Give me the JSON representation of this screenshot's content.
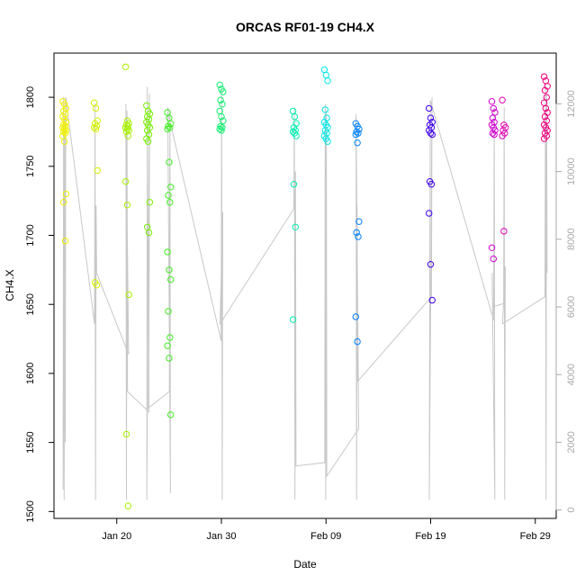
{
  "chart_data": {
    "type": "scatter",
    "title": "ORCAS RF01-19 CH4.X",
    "xlabel": "Date",
    "ylabel": "CH4.X",
    "xlim": [
      "2016-01-14",
      "2016-03-02"
    ],
    "ylim": [
      1495,
      1832
    ],
    "y2lim": [
      -250,
      13500
    ],
    "x_ticks": [
      {
        "date": "2016-01-20",
        "label": "Jan 20"
      },
      {
        "date": "2016-01-30",
        "label": "Jan 30"
      },
      {
        "date": "2016-02-09",
        "label": "Feb 09"
      },
      {
        "date": "2016-02-19",
        "label": "Feb 19"
      },
      {
        "date": "2016-02-29",
        "label": "Feb 29"
      }
    ],
    "y_ticks": [
      1500,
      1550,
      1600,
      1650,
      1700,
      1750,
      1800
    ],
    "y2_ticks": [
      0,
      2000,
      4000,
      6000,
      8000,
      10000,
      12000
    ],
    "grid": false,
    "secondary_line_color": "#c8c8c8",
    "flights": [
      {
        "date": "2016-01-15",
        "color": "#f0f000",
        "ch4": [
          1797,
          1795,
          1792,
          1790,
          1788,
          1786,
          1784,
          1782,
          1780,
          1779,
          1778,
          1777,
          1776,
          1775,
          1774,
          1772,
          1768,
          1730,
          1724,
          1696
        ]
      },
      {
        "date": "2016-01-18",
        "color": "#d2f000",
        "ch4": [
          1796,
          1792,
          1783,
          1781,
          1779,
          1778,
          1777,
          1747,
          1666,
          1664
        ]
      },
      {
        "date": "2016-01-21",
        "color": "#a8f000",
        "ch4": [
          1822,
          1783,
          1781,
          1780,
          1779,
          1778,
          1777,
          1776,
          1775,
          1772,
          1739,
          1722,
          1657,
          1556,
          1504
        ]
      },
      {
        "date": "2016-01-23",
        "color": "#78f000",
        "ch4": [
          1794,
          1790,
          1788,
          1786,
          1784,
          1782,
          1780,
          1778,
          1776,
          1773,
          1770,
          1768,
          1724,
          1706,
          1702
        ]
      },
      {
        "date": "2016-01-25",
        "color": "#40f020",
        "ch4": [
          1789,
          1785,
          1781,
          1779,
          1778,
          1777,
          1753,
          1735,
          1729,
          1724,
          1688,
          1675,
          1668,
          1645,
          1626,
          1620,
          1611,
          1570
        ]
      },
      {
        "date": "2016-01-30",
        "color": "#10f070",
        "ch4": [
          1809,
          1806,
          1804,
          1798,
          1795,
          1790,
          1786,
          1783,
          1779,
          1778,
          1777,
          1776
        ]
      },
      {
        "date": "2016-02-06",
        "color": "#00f0b0",
        "ch4": [
          1790,
          1786,
          1781,
          1778,
          1776,
          1775,
          1774,
          1772,
          1737,
          1706,
          1639
        ]
      },
      {
        "date": "2016-02-09",
        "color": "#00e8e8",
        "ch4": [
          1820,
          1816,
          1812,
          1791,
          1785,
          1782,
          1780,
          1778,
          1776,
          1774,
          1772,
          1770,
          1768
        ]
      },
      {
        "date": "2016-02-12",
        "color": "#0080ff",
        "ch4": [
          1781,
          1779,
          1777,
          1775,
          1774,
          1773,
          1767,
          1710,
          1702,
          1699,
          1641,
          1623
        ]
      },
      {
        "date": "2016-02-19",
        "color": "#4000f0",
        "ch4": [
          1792,
          1785,
          1782,
          1780,
          1778,
          1776,
          1774,
          1773,
          1739,
          1737,
          1716,
          1679,
          1653
        ]
      },
      {
        "date": "2016-02-25",
        "color": "#d000d0",
        "ch4": [
          1797,
          1792,
          1789,
          1785,
          1782,
          1780,
          1778,
          1776,
          1774,
          1773,
          1691,
          1683
        ]
      },
      {
        "date": "2016-02-26",
        "color": "#e000b0",
        "ch4": [
          1798,
          1780,
          1778,
          1776,
          1774,
          1772,
          1703
        ]
      },
      {
        "date": "2016-03-01",
        "color": "#f00080",
        "ch4": [
          1815,
          1812,
          1808,
          1805,
          1800,
          1796,
          1792,
          1789,
          1786,
          1783,
          1780,
          1778,
          1776,
          1774,
          1772,
          1770
        ]
      }
    ],
    "altitude_trace": [
      [
        "2016-01-15",
        600
      ],
      [
        "2016-01-15",
        12200
      ],
      [
        "2016-01-15",
        300
      ],
      [
        "2016-01-15",
        11600
      ],
      [
        "2016-01-15",
        2000
      ],
      [
        "2016-01-15",
        12200
      ],
      [
        "2016-01-18",
        5500
      ],
      [
        "2016-01-18",
        12000
      ],
      [
        "2016-01-18",
        300
      ],
      [
        "2016-01-18",
        9000
      ],
      [
        "2016-01-18",
        7000
      ],
      [
        "2016-01-21",
        4600
      ],
      [
        "2016-01-21",
        12000
      ],
      [
        "2016-01-21",
        300
      ],
      [
        "2016-01-21",
        11800
      ],
      [
        "2016-01-21",
        3500
      ],
      [
        "2016-01-23",
        2900
      ],
      [
        "2016-01-23",
        12300
      ],
      [
        "2016-01-23",
        300
      ],
      [
        "2016-01-23",
        12500
      ],
      [
        "2016-01-23",
        3000
      ],
      [
        "2016-01-25",
        3500
      ],
      [
        "2016-01-25",
        11800
      ],
      [
        "2016-01-25",
        500
      ],
      [
        "2016-01-25",
        11900
      ],
      [
        "2016-01-25",
        11700
      ],
      [
        "2016-01-30",
        5000
      ],
      [
        "2016-01-30",
        12500
      ],
      [
        "2016-01-30",
        300
      ],
      [
        "2016-01-30",
        8800
      ],
      [
        "2016-01-30",
        5500
      ],
      [
        "2016-02-06",
        8900
      ],
      [
        "2016-02-06",
        11900
      ],
      [
        "2016-02-06",
        300
      ],
      [
        "2016-02-06",
        10000
      ],
      [
        "2016-02-06",
        1300
      ],
      [
        "2016-02-09",
        1400
      ],
      [
        "2016-02-09",
        12000
      ],
      [
        "2016-02-09",
        300
      ],
      [
        "2016-02-09",
        11800
      ],
      [
        "2016-02-09",
        1000
      ],
      [
        "2016-02-12",
        2400
      ],
      [
        "2016-02-12",
        11700
      ],
      [
        "2016-02-12",
        300
      ],
      [
        "2016-02-12",
        9000
      ],
      [
        "2016-02-12",
        3800
      ],
      [
        "2016-02-19",
        6300
      ],
      [
        "2016-02-19",
        12200
      ],
      [
        "2016-02-19",
        300
      ],
      [
        "2016-02-19",
        8000
      ],
      [
        "2016-02-19",
        12100
      ],
      [
        "2016-02-25",
        5600
      ],
      [
        "2016-02-25",
        11900
      ],
      [
        "2016-02-25",
        300
      ],
      [
        "2016-02-25",
        7000
      ],
      [
        "2016-02-25",
        6000
      ],
      [
        "2016-02-26",
        6100
      ],
      [
        "2016-02-26",
        11900
      ],
      [
        "2016-02-26",
        300
      ],
      [
        "2016-02-26",
        7200
      ],
      [
        "2016-02-26",
        5500
      ],
      [
        "2016-03-01",
        6300
      ],
      [
        "2016-03-01",
        12600
      ],
      [
        "2016-03-01",
        300
      ],
      [
        "2016-03-01",
        12300
      ],
      [
        "2016-03-01",
        7000
      ]
    ]
  }
}
